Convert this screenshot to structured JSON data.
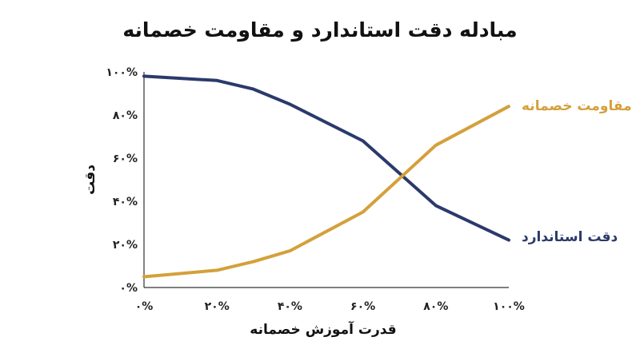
{
  "chart_data": {
    "type": "line",
    "title": "مبادله دقت استاندارد و مقاومت خصمانه",
    "xlabel": "قدرت آموزش خصمانه",
    "ylabel": "دقت",
    "x": [
      0,
      20,
      30,
      40,
      60,
      80,
      100
    ],
    "xticks": [
      0,
      20,
      40,
      60,
      80,
      100
    ],
    "yticks": [
      0,
      20,
      40,
      60,
      80,
      100
    ],
    "xtick_labels": [
      "۰%",
      "۲۰%",
      "۴۰%",
      "۶۰%",
      "۸۰%",
      "۱۰۰%"
    ],
    "ytick_labels": [
      "۰%",
      "۲۰%",
      "۴۰%",
      "۶۰%",
      "۸۰%",
      "۱۰۰%"
    ],
    "xlim": [
      0,
      100
    ],
    "ylim": [
      0,
      100
    ],
    "grid": false,
    "legend": "direct-labels-right",
    "series": [
      {
        "name": "دقت استاندارد",
        "color": "#2b3a6b",
        "values": [
          98,
          96,
          92,
          85,
          68,
          38,
          22
        ]
      },
      {
        "name": "مقاومت خصمانه",
        "color": "#d4a03a",
        "values": [
          5,
          8,
          12,
          17,
          35,
          66,
          84
        ]
      }
    ]
  }
}
